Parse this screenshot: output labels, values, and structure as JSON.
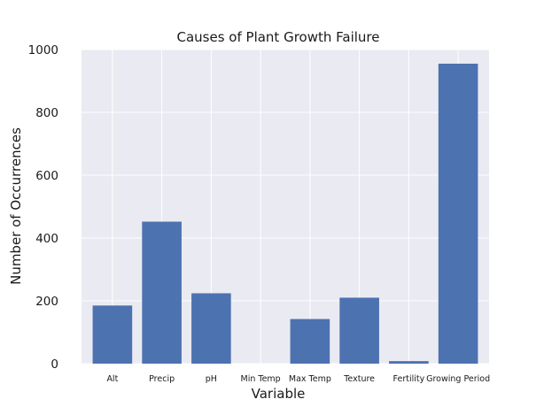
{
  "chart_data": {
    "type": "bar",
    "title": "Causes of Plant Growth Failure",
    "xlabel": "Variable",
    "ylabel": "Number of Occurrences",
    "categories": [
      "Alt",
      "Precip",
      "pH",
      "Min Temp",
      "Max Temp",
      "Texture",
      "Fertility",
      "Growing Period"
    ],
    "values": [
      185,
      452,
      224,
      0,
      142,
      210,
      8,
      955
    ],
    "ylim": [
      0,
      1000
    ],
    "yticks": [
      0,
      200,
      400,
      600,
      800,
      1000
    ],
    "grid": true,
    "colors": {
      "bar": "#4c72b0",
      "plot_background": "#eaeaf2",
      "grid": "#ffffff"
    }
  }
}
